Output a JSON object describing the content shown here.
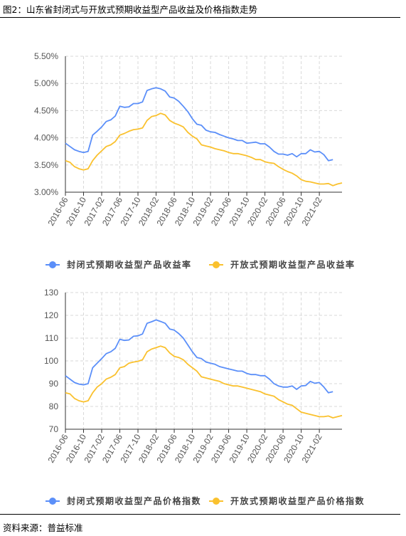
{
  "header": {
    "title": "图2：山东省封闭式与开放式预期收益型产品收益及价格指数走势"
  },
  "footer": {
    "source": "资料来源：普益标准"
  },
  "colors": {
    "closed": "#5b8ff9",
    "open": "#fac12e",
    "grid": "#d9d9d9",
    "axis": "#333333"
  },
  "chart_data": [
    {
      "type": "line",
      "ylim": [
        3.0,
        5.5
      ],
      "yticks": [
        "3.00%",
        "3.50%",
        "4.00%",
        "4.50%",
        "5.00%",
        "5.50%"
      ],
      "ytick_values": [
        3.0,
        3.5,
        4.0,
        4.5,
        5.0,
        5.5
      ],
      "xticks": [
        "2016-06",
        "2016-10",
        "2017-02",
        "2017-06",
        "2017-10",
        "2018-02",
        "2018-06",
        "2018-10",
        "2019-02",
        "2019-06",
        "2019-10",
        "2020-02",
        "2020-06",
        "2020-10",
        "2021-02"
      ],
      "xtick_indices": [
        0,
        4,
        8,
        12,
        16,
        20,
        24,
        28,
        32,
        36,
        40,
        44,
        48,
        52,
        56
      ],
      "legend_position": "bottom",
      "series": [
        {
          "name": "封闭式预期收益型产品收益率",
          "color": "#5b8ff9",
          "values": [
            3.9,
            3.84,
            3.78,
            3.75,
            3.73,
            3.75,
            4.05,
            4.12,
            4.2,
            4.3,
            4.33,
            4.4,
            4.58,
            4.56,
            4.57,
            4.63,
            4.63,
            4.66,
            4.87,
            4.9,
            4.92,
            4.9,
            4.86,
            4.75,
            4.73,
            4.67,
            4.58,
            4.48,
            4.35,
            4.25,
            4.23,
            4.14,
            4.11,
            4.1,
            4.06,
            4.03,
            4.0,
            3.98,
            3.95,
            3.95,
            3.9,
            3.91,
            3.92,
            3.89,
            3.89,
            3.83,
            3.75,
            3.7,
            3.7,
            3.68,
            3.71,
            3.65,
            3.71,
            3.71,
            3.78,
            3.74,
            3.75,
            3.69,
            3.58,
            3.6
          ]
        },
        {
          "name": "开放式预期收益型产品收益率",
          "color": "#fac12e",
          "values": [
            3.58,
            3.55,
            3.47,
            3.43,
            3.41,
            3.43,
            3.58,
            3.68,
            3.76,
            3.84,
            3.87,
            3.93,
            4.05,
            4.08,
            4.12,
            4.15,
            4.16,
            4.18,
            4.32,
            4.39,
            4.41,
            4.45,
            4.42,
            4.32,
            4.27,
            4.24,
            4.2,
            4.1,
            4.03,
            3.98,
            3.87,
            3.85,
            3.83,
            3.8,
            3.78,
            3.76,
            3.73,
            3.71,
            3.71,
            3.69,
            3.67,
            3.64,
            3.6,
            3.6,
            3.56,
            3.54,
            3.53,
            3.47,
            3.42,
            3.38,
            3.35,
            3.3,
            3.23,
            3.2,
            3.19,
            3.17,
            3.15,
            3.15,
            3.16,
            3.12,
            3.15,
            3.17
          ]
        }
      ]
    },
    {
      "type": "line",
      "ylim": [
        70,
        130
      ],
      "yticks": [
        "70",
        "80",
        "90",
        "100",
        "110",
        "120",
        "130"
      ],
      "ytick_values": [
        70,
        80,
        90,
        100,
        110,
        120,
        130
      ],
      "xticks": [
        "2016-06",
        "2016-10",
        "2017-02",
        "2017-06",
        "2017-10",
        "2018-02",
        "2018-06",
        "2018-10",
        "2019-02",
        "2019-06",
        "2019-10",
        "2020-02",
        "2020-06",
        "2020-10",
        "2021-02"
      ],
      "xtick_indices": [
        0,
        4,
        8,
        12,
        16,
        20,
        24,
        28,
        32,
        36,
        40,
        44,
        48,
        52,
        56
      ],
      "legend_position": "bottom",
      "series": [
        {
          "name": "封闭式预期收益型产品价格指数",
          "color": "#5b8ff9",
          "values": [
            93.5,
            92,
            90.5,
            89.8,
            89.5,
            90,
            97,
            99,
            101,
            103.2,
            104,
            105.5,
            109.5,
            109,
            109.2,
            110.8,
            111,
            111.8,
            116.5,
            117.2,
            118,
            117.3,
            116.5,
            114,
            113.5,
            112,
            110,
            107,
            104,
            101.5,
            101,
            99.5,
            99,
            98.5,
            97.5,
            97,
            96.5,
            96,
            95.5,
            95.5,
            94.5,
            94,
            94,
            93.5,
            93.5,
            92,
            90,
            89,
            88.5,
            88.5,
            89,
            87.5,
            89,
            89.2,
            91,
            90.2,
            90.5,
            88.5,
            86,
            86.5
          ]
        },
        {
          "name": "开放式预期收益型产品价格指数",
          "color": "#fac12e",
          "values": [
            86,
            85.5,
            83.5,
            82.5,
            82,
            82.5,
            86,
            88.5,
            90,
            92,
            92.8,
            94,
            97,
            97.5,
            99,
            99.5,
            99.8,
            100.5,
            104,
            105.2,
            105.8,
            106.5,
            105.8,
            103.5,
            102,
            101.5,
            100.5,
            98.5,
            97,
            95.5,
            93,
            92.5,
            92,
            91.5,
            91,
            90,
            89.5,
            89,
            89,
            88.5,
            88,
            87.5,
            87,
            86.5,
            85.5,
            85,
            84.5,
            83,
            82,
            81,
            80.5,
            79,
            77.5,
            77,
            76.5,
            76,
            75.5,
            75.5,
            75.8,
            75,
            75.5,
            76
          ]
        }
      ]
    }
  ]
}
